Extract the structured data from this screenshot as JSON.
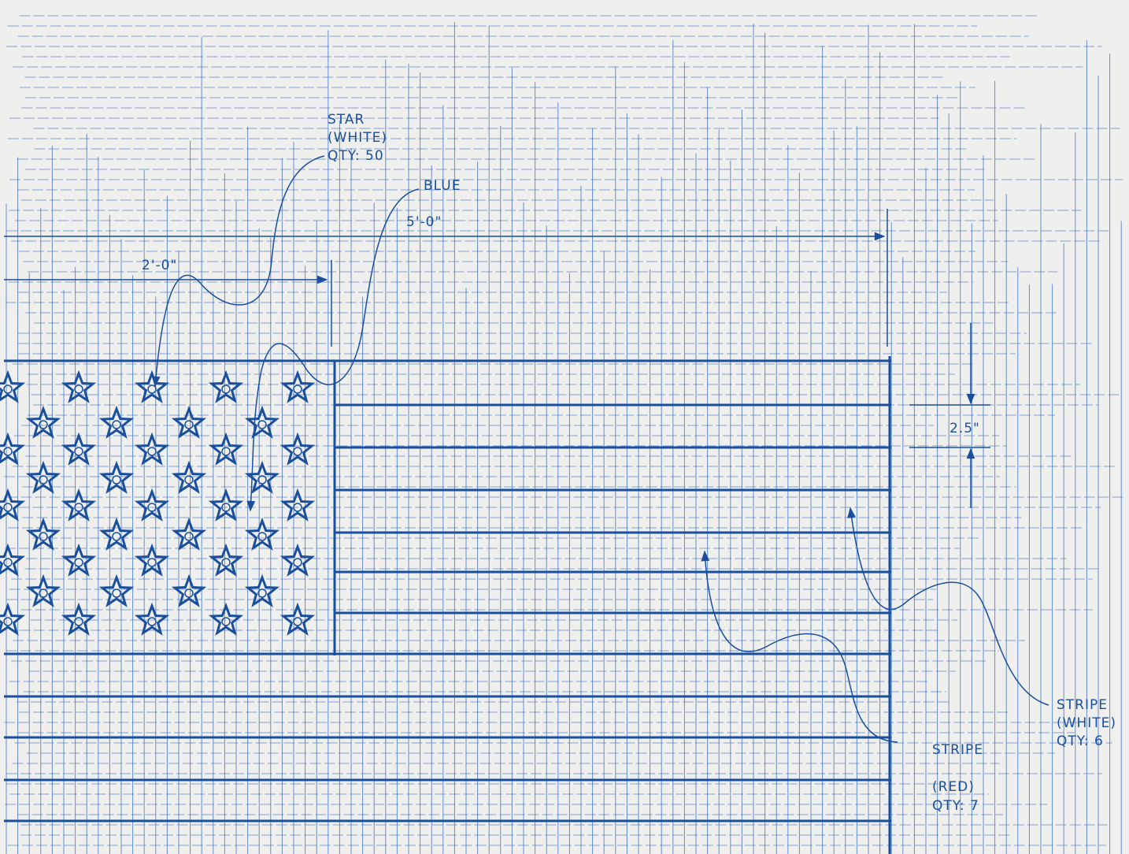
{
  "labels": {
    "star": {
      "name": "STAR",
      "color": "(WHITE)",
      "qty": "QTY: 50"
    },
    "blue": "BLUE",
    "width_total": "5'-0\"",
    "width_canton": "2'-0\"",
    "stripe_height": "2.5\"",
    "stripe_red": {
      "name": "STRIPE",
      "color": "(RED)",
      "qty": "QTY: 7"
    },
    "stripe_white": {
      "name": "STRIPE",
      "color": "(WHITE)",
      "qty": "QTY: 6"
    }
  }
}
